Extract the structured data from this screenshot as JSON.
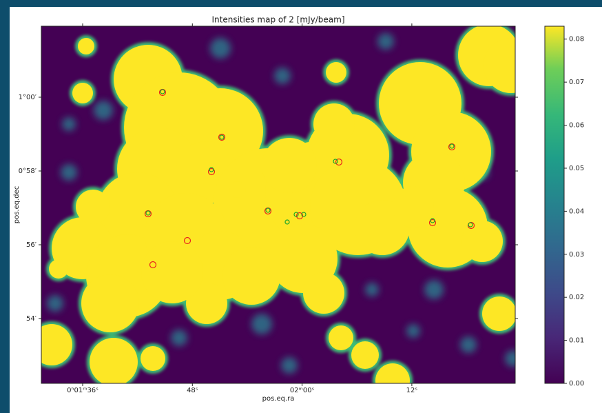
{
  "chart_data": {
    "type": "heatmap",
    "title": "Intensities map of 2 [mJy/beam]",
    "x_label": "pos.eq.ra",
    "y_label": "pos.eq.dec",
    "x_tick_labels": [
      "0ʰ01ᵐ36ˢ",
      "48ˢ",
      "02ᵐ00ˢ",
      "12ˢ"
    ],
    "y_tick_labels": [
      "1°00′",
      "0°58′",
      "56′",
      "54′"
    ],
    "colormap": "viridis",
    "colorbar": {
      "ylim": [
        0,
        0.083
      ],
      "yticks": [
        {
          "value": 0,
          "label": "0.00"
        },
        0.01,
        0.02,
        0.03,
        0.04,
        0.05,
        0.06,
        0.07,
        0.08
      ]
    }
  }
}
